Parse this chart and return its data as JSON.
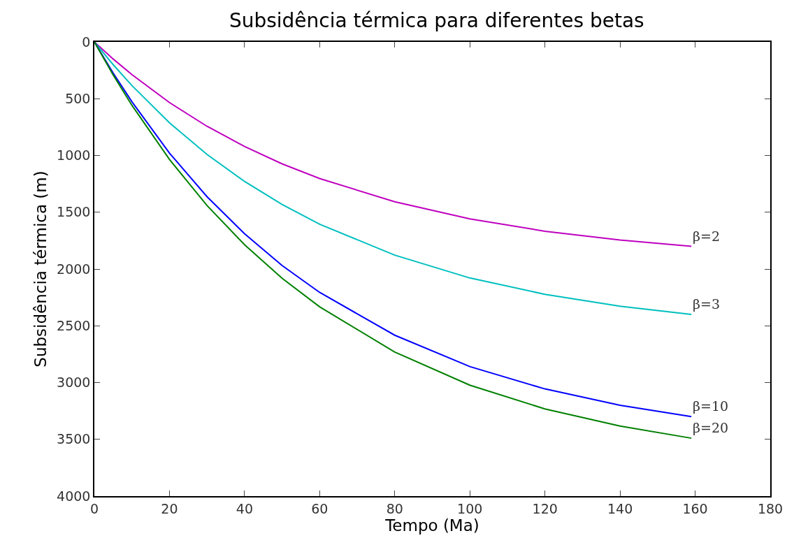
{
  "chart_data": {
    "type": "line",
    "title": "Subsidência térmica para diferentes betas",
    "xlabel": "Tempo (Ma)",
    "ylabel": "Subsidência térmica (m)",
    "x": [
      0,
      5,
      10,
      20,
      30,
      40,
      50,
      60,
      80,
      100,
      120,
      140,
      159
    ],
    "series": [
      {
        "name": "β=2",
        "color": "#bf00bf",
        "values": [
          0,
          150,
          288,
          534,
          743,
          921,
          1074,
          1203,
          1408,
          1559,
          1667,
          1745,
          1800
        ]
      },
      {
        "name": "β=3",
        "color": "#00bfbf",
        "values": [
          0,
          200,
          384,
          712,
          991,
          1229,
          1432,
          1605,
          1878,
          2079,
          2223,
          2327,
          2400
        ]
      },
      {
        "name": "β=10",
        "color": "#0000ff",
        "values": [
          0,
          274,
          527,
          979,
          1363,
          1689,
          1969,
          2206,
          2583,
          2859,
          3056,
          3200,
          3300
        ]
      },
      {
        "name": "β=20",
        "color": "#008000",
        "values": [
          0,
          290,
          558,
          1035,
          1441,
          1786,
          2082,
          2333,
          2731,
          3023,
          3232,
          3383,
          3490
        ]
      }
    ],
    "xlim": [
      0,
      180
    ],
    "xticks": [
      0,
      20,
      40,
      60,
      80,
      100,
      120,
      140,
      160,
      180
    ],
    "ylim": [
      4000,
      0
    ],
    "yticks": [
      0,
      500,
      1000,
      1500,
      2000,
      2500,
      3000,
      3500,
      4000
    ],
    "legend": false,
    "marker": "none",
    "line_style": "solid"
  }
}
